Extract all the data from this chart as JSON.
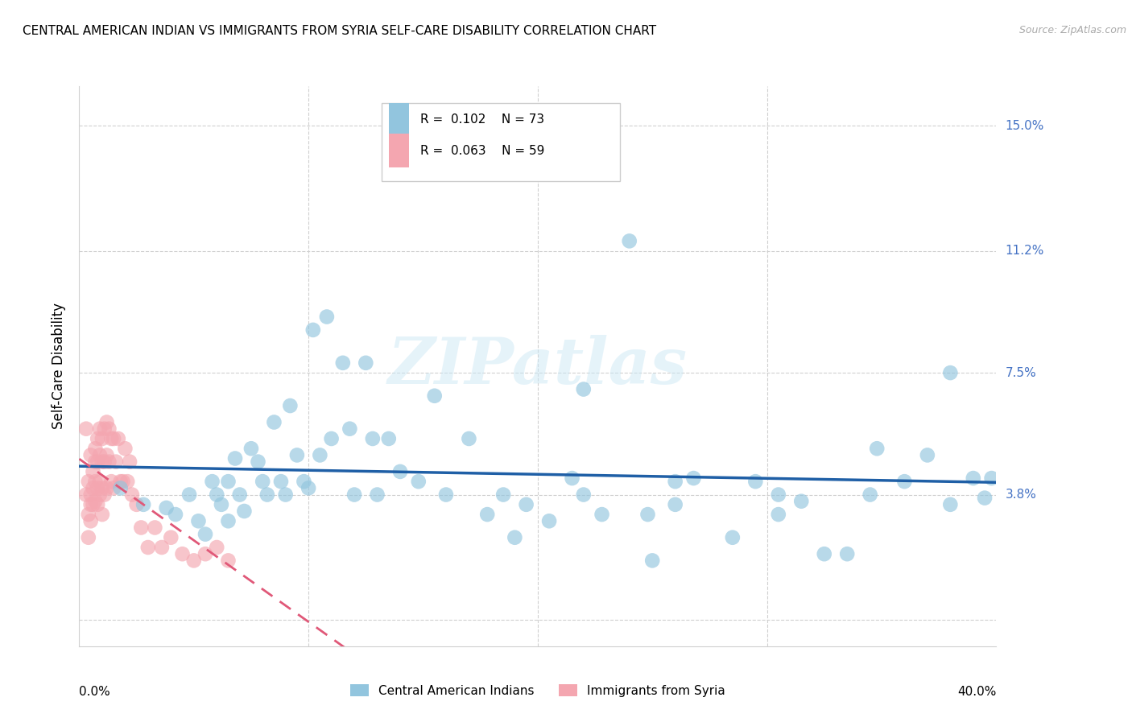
{
  "title": "CENTRAL AMERICAN INDIAN VS IMMIGRANTS FROM SYRIA SELF-CARE DISABILITY CORRELATION CHART",
  "source": "Source: ZipAtlas.com",
  "ylabel": "Self-Care Disability",
  "xmin": 0.0,
  "xmax": 0.4,
  "ymin": -0.008,
  "ymax": 0.162,
  "ytick_positions": [
    0.0,
    0.038,
    0.075,
    0.112,
    0.15
  ],
  "ytick_labels": [
    "",
    "3.8%",
    "7.5%",
    "11.2%",
    "15.0%"
  ],
  "xtick_positions": [
    0.0,
    0.1,
    0.2,
    0.3,
    0.4
  ],
  "legend1_r": "0.102",
  "legend1_n": "73",
  "legend2_r": "0.063",
  "legend2_n": "59",
  "legend1_label": "Central American Indians",
  "legend2_label": "Immigrants from Syria",
  "blue_color": "#92c5de",
  "pink_color": "#f4a6b0",
  "blue_line_color": "#1f5fa6",
  "pink_line_color": "#e05878",
  "watermark": "ZIPatlas",
  "blue_x": [
    0.018,
    0.028,
    0.038,
    0.042,
    0.048,
    0.052,
    0.055,
    0.058,
    0.06,
    0.062,
    0.065,
    0.065,
    0.068,
    0.07,
    0.072,
    0.075,
    0.078,
    0.08,
    0.082,
    0.085,
    0.088,
    0.09,
    0.092,
    0.095,
    0.098,
    0.1,
    0.102,
    0.105,
    0.108,
    0.11,
    0.115,
    0.118,
    0.12,
    0.125,
    0.128,
    0.13,
    0.135,
    0.14,
    0.148,
    0.155,
    0.16,
    0.17,
    0.178,
    0.185,
    0.19,
    0.195,
    0.205,
    0.215,
    0.22,
    0.228,
    0.24,
    0.248,
    0.25,
    0.26,
    0.268,
    0.285,
    0.295,
    0.305,
    0.315,
    0.325,
    0.335,
    0.345,
    0.36,
    0.37,
    0.38,
    0.39,
    0.395,
    0.398,
    0.38,
    0.22,
    0.26,
    0.305,
    0.348
  ],
  "blue_y": [
    0.04,
    0.035,
    0.034,
    0.032,
    0.038,
    0.03,
    0.026,
    0.042,
    0.038,
    0.035,
    0.03,
    0.042,
    0.049,
    0.038,
    0.033,
    0.052,
    0.048,
    0.042,
    0.038,
    0.06,
    0.042,
    0.038,
    0.065,
    0.05,
    0.042,
    0.04,
    0.088,
    0.05,
    0.092,
    0.055,
    0.078,
    0.058,
    0.038,
    0.078,
    0.055,
    0.038,
    0.055,
    0.045,
    0.042,
    0.068,
    0.038,
    0.055,
    0.032,
    0.038,
    0.025,
    0.035,
    0.03,
    0.043,
    0.038,
    0.032,
    0.115,
    0.032,
    0.018,
    0.042,
    0.043,
    0.025,
    0.042,
    0.032,
    0.036,
    0.02,
    0.02,
    0.038,
    0.042,
    0.05,
    0.035,
    0.043,
    0.037,
    0.043,
    0.075,
    0.07,
    0.035,
    0.038,
    0.052
  ],
  "pink_x": [
    0.003,
    0.003,
    0.004,
    0.004,
    0.004,
    0.005,
    0.005,
    0.005,
    0.005,
    0.006,
    0.006,
    0.006,
    0.007,
    0.007,
    0.007,
    0.007,
    0.008,
    0.008,
    0.008,
    0.008,
    0.009,
    0.009,
    0.009,
    0.009,
    0.01,
    0.01,
    0.01,
    0.01,
    0.011,
    0.011,
    0.011,
    0.012,
    0.012,
    0.012,
    0.013,
    0.013,
    0.014,
    0.014,
    0.015,
    0.015,
    0.016,
    0.017,
    0.018,
    0.019,
    0.02,
    0.021,
    0.022,
    0.023,
    0.025,
    0.027,
    0.03,
    0.033,
    0.036,
    0.04,
    0.045,
    0.05,
    0.055,
    0.06,
    0.065
  ],
  "pink_y": [
    0.038,
    0.058,
    0.032,
    0.042,
    0.025,
    0.038,
    0.05,
    0.035,
    0.03,
    0.045,
    0.04,
    0.035,
    0.052,
    0.048,
    0.042,
    0.036,
    0.055,
    0.048,
    0.04,
    0.035,
    0.058,
    0.05,
    0.042,
    0.038,
    0.055,
    0.048,
    0.04,
    0.032,
    0.058,
    0.048,
    0.038,
    0.06,
    0.05,
    0.04,
    0.058,
    0.048,
    0.055,
    0.042,
    0.055,
    0.04,
    0.048,
    0.055,
    0.042,
    0.042,
    0.052,
    0.042,
    0.048,
    0.038,
    0.035,
    0.028,
    0.022,
    0.028,
    0.022,
    0.025,
    0.02,
    0.018,
    0.02,
    0.022,
    0.018
  ]
}
